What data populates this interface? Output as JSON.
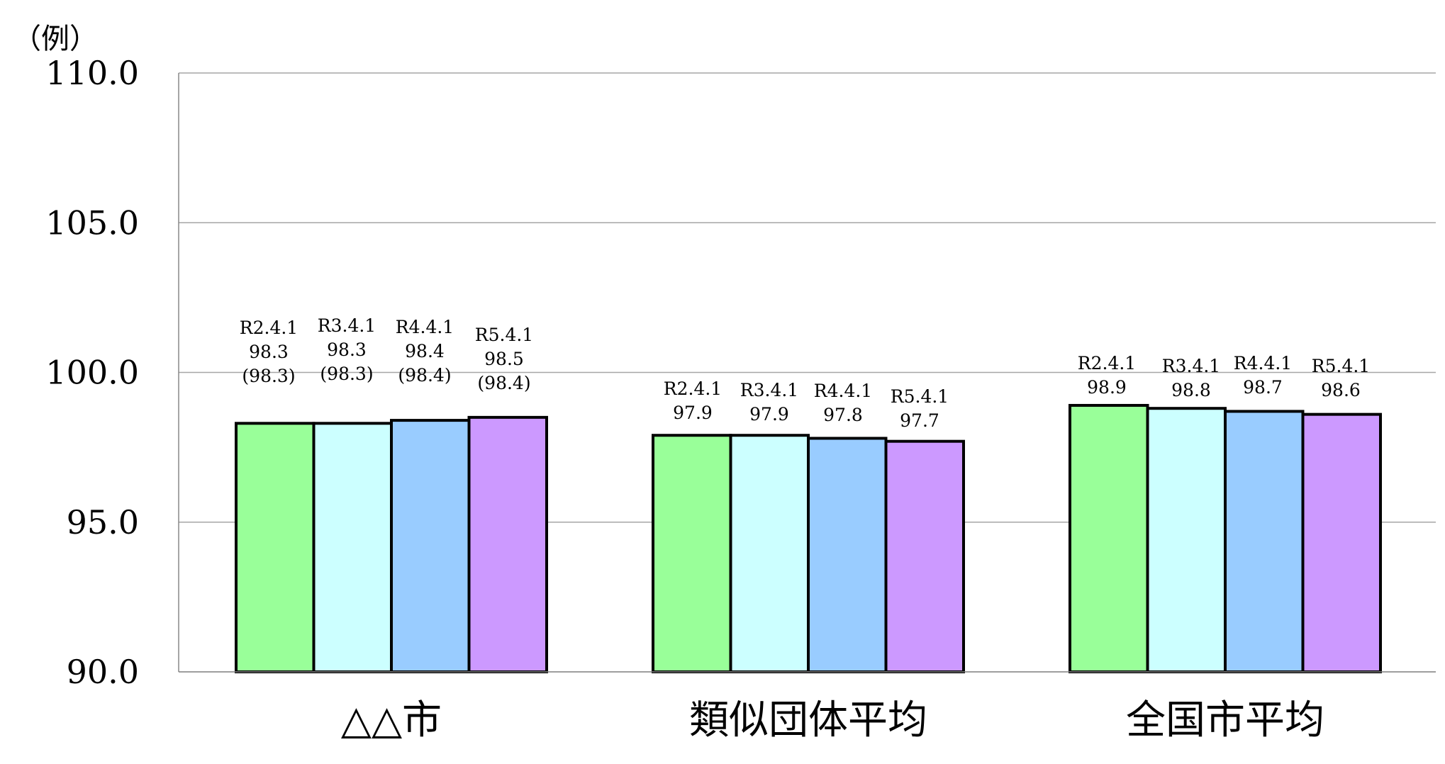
{
  "chart_data": {
    "type": "bar",
    "unit_label": "（例）",
    "categories": [
      "△△市",
      "類似団体平均",
      "全国市平均"
    ],
    "ylim": [
      90,
      110
    ],
    "yticks": [
      "110.0",
      "105.0",
      "100.0",
      "95.0",
      "90.0"
    ],
    "ytick_values": [
      110,
      105,
      100,
      95,
      90
    ],
    "grid": true,
    "series_colors": [
      "#99ff99",
      "#ccffff",
      "#99ccff",
      "#cc99ff"
    ],
    "groups": [
      {
        "category": "△△市",
        "bars": [
          {
            "date": "R2.4.1",
            "value": 98.3,
            "value_label": "98.3",
            "sub_label": "(98.3)"
          },
          {
            "date": "R3.4.1",
            "value": 98.3,
            "value_label": "98.3",
            "sub_label": "(98.3)"
          },
          {
            "date": "R4.4.1",
            "value": 98.4,
            "value_label": "98.4",
            "sub_label": "(98.4)"
          },
          {
            "date": "R5.4.1",
            "value": 98.5,
            "value_label": "98.5",
            "sub_label": "(98.4)"
          }
        ]
      },
      {
        "category": "類似団体平均",
        "bars": [
          {
            "date": "R2.4.1",
            "value": 97.9,
            "value_label": "97.9"
          },
          {
            "date": "R3.4.1",
            "value": 97.9,
            "value_label": "97.9"
          },
          {
            "date": "R4.4.1",
            "value": 97.8,
            "value_label": "97.8"
          },
          {
            "date": "R5.4.1",
            "value": 97.7,
            "value_label": "97.7"
          }
        ]
      },
      {
        "category": "全国市平均",
        "bars": [
          {
            "date": "R2.4.1",
            "value": 98.9,
            "value_label": "98.9"
          },
          {
            "date": "R3.4.1",
            "value": 98.8,
            "value_label": "98.8"
          },
          {
            "date": "R4.4.1",
            "value": 98.7,
            "value_label": "98.7"
          },
          {
            "date": "R5.4.1",
            "value": 98.6,
            "value_label": "98.6"
          }
        ]
      }
    ]
  }
}
